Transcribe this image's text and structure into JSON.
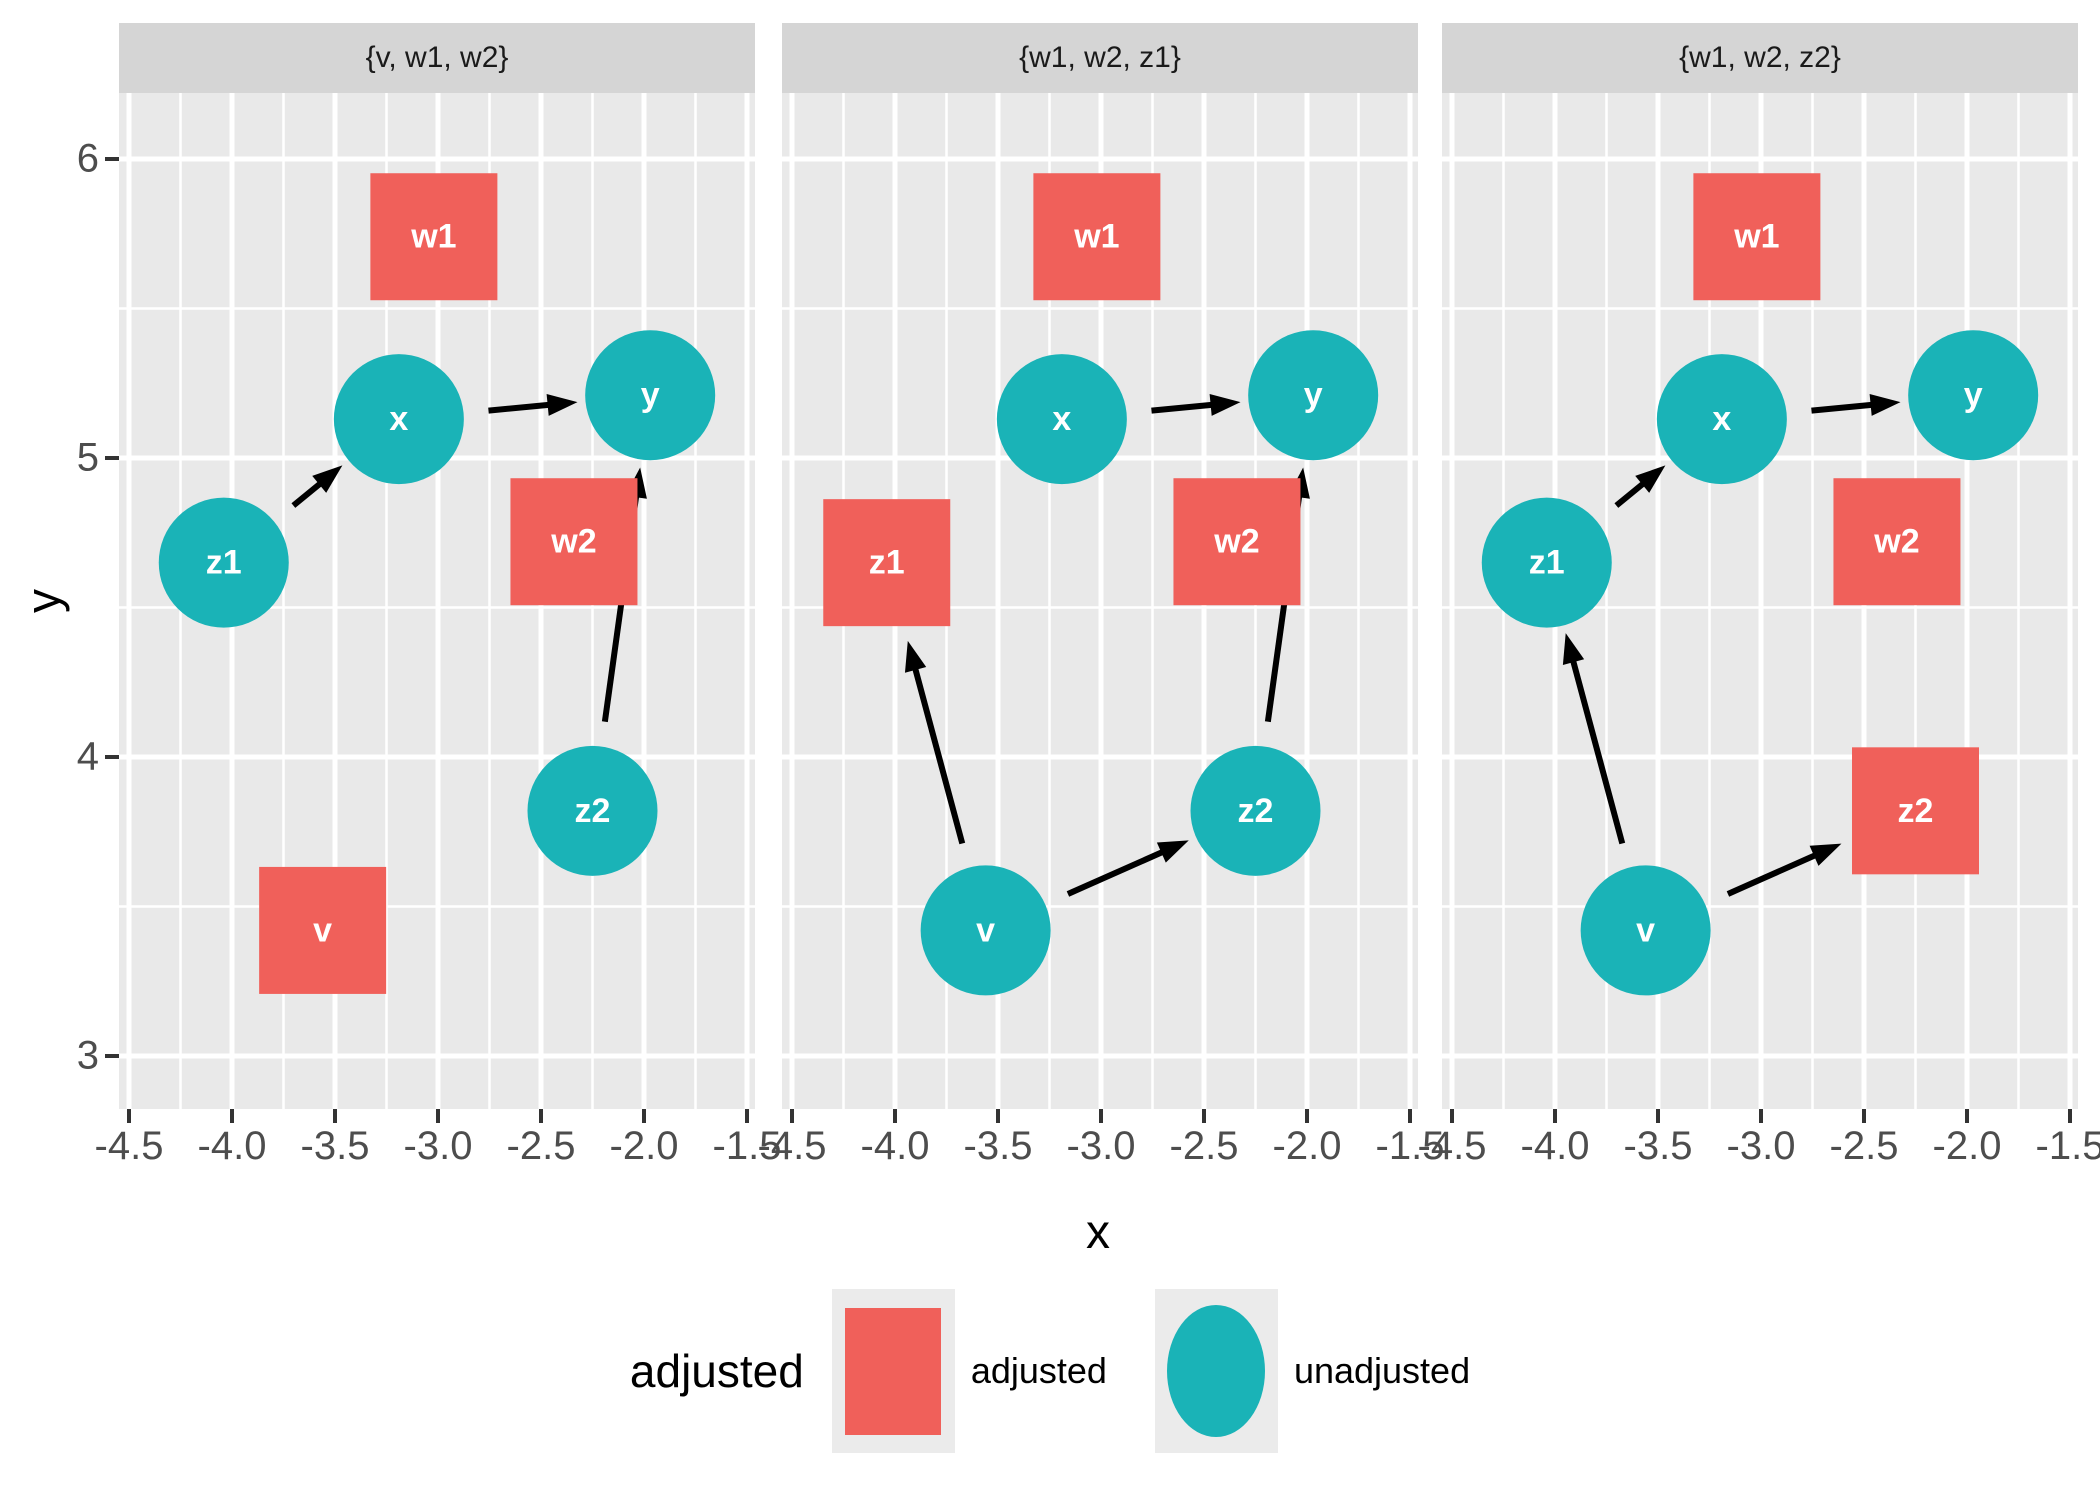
{
  "chart_data": {
    "type": "dag_facets",
    "xlabel": "x",
    "ylabel": "y",
    "x_ticks": [
      -4.5,
      -4.0,
      -3.5,
      -3.0,
      -2.5,
      -2.0,
      -1.5
    ],
    "x_tick_labels": [
      "-4.5",
      "-4.0",
      "-3.5",
      "-3.0",
      "-2.5",
      "-2.0",
      "-1.5"
    ],
    "y_ticks": [
      6,
      5,
      4,
      3
    ],
    "y_tick_labels": [
      "6",
      "5",
      "4",
      "3"
    ],
    "xlim": [
      -4.55,
      -1.45
    ],
    "ylim": [
      2.82,
      6.22
    ],
    "grid": "on",
    "nodes": {
      "v": {
        "label": "v",
        "x": -3.56,
        "y": 3.42
      },
      "w1": {
        "label": "w1",
        "x": -3.02,
        "y": 5.74
      },
      "w2": {
        "label": "w2",
        "x": -2.34,
        "y": 4.72
      },
      "x": {
        "label": "x",
        "x": -3.19,
        "y": 5.13
      },
      "y": {
        "label": "y",
        "x": -1.97,
        "y": 5.21
      },
      "z1": {
        "label": "z1",
        "x": -4.04,
        "y": 4.65
      },
      "z2": {
        "label": "z2",
        "x": -2.25,
        "y": 3.82
      }
    },
    "facets": [
      {
        "title": "{v, w1, w2}",
        "adjusted": [
          "v",
          "w1",
          "w2"
        ],
        "edges": [
          [
            "z1",
            "x"
          ],
          [
            "x",
            "y"
          ],
          [
            "z2",
            "y"
          ]
        ]
      },
      {
        "title": "{w1, w2, z1}",
        "adjusted": [
          "w1",
          "w2",
          "z1"
        ],
        "edges": [
          [
            "v",
            "z1"
          ],
          [
            "v",
            "z2"
          ],
          [
            "x",
            "y"
          ],
          [
            "z2",
            "y"
          ]
        ]
      },
      {
        "title": "{w1, w2, z2}",
        "adjusted": [
          "w1",
          "w2",
          "z2"
        ],
        "edges": [
          [
            "v",
            "z1"
          ],
          [
            "v",
            "z2"
          ],
          [
            "z1",
            "x"
          ],
          [
            "x",
            "y"
          ]
        ]
      }
    ],
    "legend": {
      "title": "adjusted",
      "items": [
        {
          "label": "adjusted",
          "shape": "square"
        },
        {
          "label": "unadjusted",
          "shape": "circle"
        }
      ]
    }
  },
  "colors": {
    "adjusted": "#F0605A",
    "unadjusted": "#1AB3B7",
    "panel_bg": "#E9E9E9",
    "strip_bg": "#D5D5D5",
    "grid": "#FFFFFF",
    "edge": "#000000",
    "node_label": "#FFFFFF",
    "tick_text": "#4D4D4D",
    "legend_key_bg": "#EBEBEB"
  }
}
